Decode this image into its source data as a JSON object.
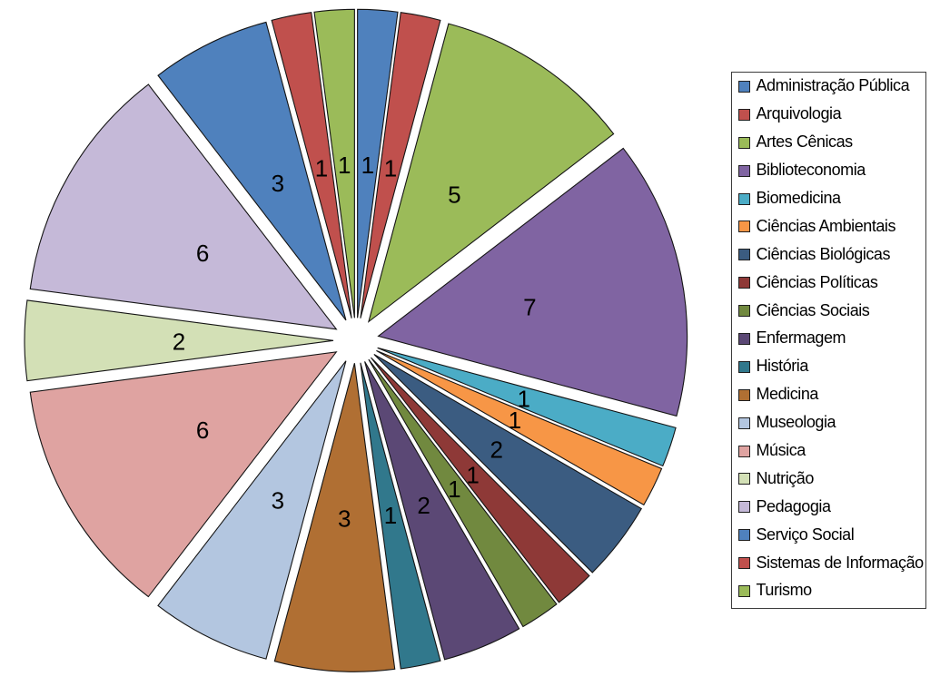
{
  "chart_data": {
    "type": "pie",
    "title": "",
    "legend_position": "right",
    "direction": "clockwise",
    "start_angle_deg": 0,
    "exploded": true,
    "total": 48,
    "categories": [
      "Administração Pública",
      "Arquivologia",
      "Artes Cênicas",
      "Biblioteconomia",
      "Biomedicina",
      "Ciências Ambientais",
      "Ciências Biológicas",
      "Ciências Políticas",
      "Ciências Sociais",
      "Enfermagem",
      "História",
      "Medicina",
      "Museologia",
      "Música",
      "Nutrição",
      "Pedagogia",
      "Serviço Social",
      "Sistemas de Informação",
      "Turismo"
    ],
    "values": [
      1,
      1,
      5,
      7,
      1,
      1,
      2,
      1,
      1,
      2,
      1,
      3,
      3,
      6,
      2,
      6,
      3,
      1,
      1
    ],
    "labels": [
      "1",
      "1",
      "5",
      "7",
      "1",
      "1",
      "2",
      "1",
      "1",
      "2",
      "1",
      "3",
      "3",
      "6",
      "2",
      "6",
      "3",
      "1",
      "1"
    ],
    "colors": [
      "#4F81BD",
      "#C0504D",
      "#9BBB59",
      "#8064A2",
      "#4BACC6",
      "#F79646",
      "#3B5C81",
      "#8E3937",
      "#71893F",
      "#5B4875",
      "#31788C",
      "#B06F33",
      "#B3C6E0",
      "#DFA3A1",
      "#D3E0B6",
      "#C5B9D8",
      "#4F81BD",
      "#C0504D",
      "#9BBB59"
    ]
  },
  "style_colors": {
    "background": "#FFFFFF",
    "slice_border": "#141414",
    "label_text": "#000000",
    "legend_border": "#3C3C3C",
    "legend_key_border": "#1F1F1F",
    "legend_text": "#000000"
  }
}
